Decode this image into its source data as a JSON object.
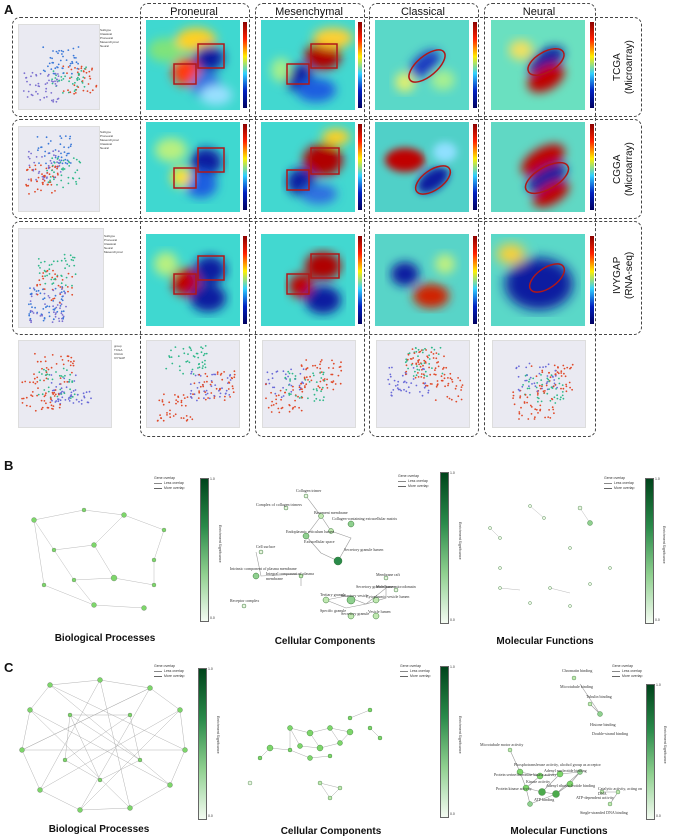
{
  "panel_letters": {
    "a": "A",
    "b": "B",
    "c": "C"
  },
  "panel_a": {
    "columns": [
      "Proneural",
      "Mesenchymal",
      "Classical",
      "Neural"
    ],
    "rows": [
      {
        "label_line1": "TCGA",
        "label_line2": "(Microarray)"
      },
      {
        "label_line1": "CGGA",
        "label_line2": "(Microarray)"
      },
      {
        "label_line1": "IVYGAP",
        "label_line2": "(RNA-seq)"
      }
    ],
    "subtype_legend": {
      "title": "Subtype",
      "items": [
        "Classical",
        "Proneural",
        "Mesenchymal",
        "Neural"
      ]
    },
    "group_legend": {
      "title": "group",
      "items": [
        "TCGA",
        "CGGA",
        "IVYGAP"
      ]
    },
    "axis_x": "Umap1",
    "axis_y": "Umap2",
    "colors": {
      "classical": "#3a78d8",
      "proneural": "#e04a2a",
      "mesenchymal": "#7b6fd0",
      "neural": "#2fb88a",
      "tcga": "#e04a2a",
      "cgga": "#6a6ad8",
      "ivygap": "#2fb88a"
    }
  },
  "network_legend": {
    "title": "Gene overlap",
    "less": "Less overlap",
    "more": "More overlap",
    "colorbar_label": "Enrichment Significance",
    "ticks": [
      "1.0",
      "0.8",
      "0.6",
      "0.4",
      "0.2",
      "0.0"
    ]
  },
  "panel_b": {
    "titles": [
      "Biological Processes",
      "Cellular Components",
      "Molecular Functions"
    ],
    "cc_nodes": [
      "Collagen trimer",
      "Complex of collagen trimers",
      "Basement membrane",
      "Collagen-containing extracellular matrix",
      "Endoplasmic reticulum lumen",
      "Extracellular space",
      "Secretory granule lumen",
      "Cell surface",
      "Intrinsic component of plasma membrane",
      "Integral component of plasma membrane",
      "Membrane raft",
      "Membrane microdomain",
      "Receptor complex",
      "Secretory granule lumen",
      "Tertiary granule",
      "Secretory vesicle",
      "Cytoplasmic vesicle lumen",
      "Vesicle lumen",
      "Specific granule",
      "Secretory granule"
    ]
  },
  "panel_c": {
    "titles": [
      "Biological Processes",
      "Cellular Components",
      "Molecular Functions"
    ],
    "mf_nodes": [
      "Chromatin binding",
      "Microtubule binding",
      "Tubulin binding",
      "Histone binding",
      "Double-strand binding",
      "Microtubule motor activity",
      "Phosphotransferase activity, alcohol group as acceptor",
      "Protein serine/threonine kinase activity",
      "Adenyl nucleotide binding",
      "Kinase activity",
      "Adenyl ribonucleotide binding",
      "Protein kinase activity",
      "ATP binding",
      "Catalytic activity, acting on DNA",
      "ATP-dependent activity",
      "Single-stranded DNA binding"
    ]
  }
}
